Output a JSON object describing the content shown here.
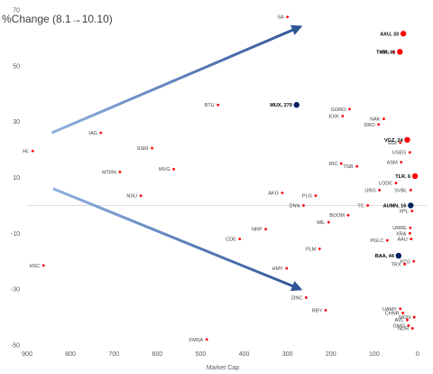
{
  "chart_data": {
    "type": "scatter",
    "title": "%Change (8.1→10.10)",
    "xlabel": "Market Cap",
    "ylabel": "",
    "x_reversed": true,
    "xlim": [
      900,
      0
    ],
    "ylim": [
      -50,
      70
    ],
    "x_ticks": [
      900,
      800,
      700,
      600,
      500,
      400,
      300,
      200,
      100,
      0
    ],
    "y_ticks": [
      70,
      50,
      30,
      10,
      -10,
      -30,
      -50
    ],
    "grid": false,
    "legend": "none",
    "colors": {
      "highlight_red": "#ff0000",
      "highlight_navy": "#002060",
      "marker": "#ff0000",
      "arrow": "#4472c4",
      "zero_line": "#d9d9d9"
    },
    "points": [
      {
        "label": "SA",
        "x": 300,
        "y": 67.5,
        "style": "small-red"
      },
      {
        "label": "AXU, 33",
        "x": 33,
        "y": 61.5,
        "style": "big-red"
      },
      {
        "label": "GPL",
        "x": 55,
        "y": 55,
        "style": "small-red"
      },
      {
        "label": "THM, 41",
        "x": 41,
        "y": 55,
        "style": "big-red"
      },
      {
        "label": "BTU",
        "x": 460,
        "y": 36,
        "style": "small-red"
      },
      {
        "label": "MUX, 279",
        "x": 279,
        "y": 36,
        "style": "big-navy"
      },
      {
        "label": "GORO",
        "x": 157,
        "y": 34.5,
        "style": "small-red"
      },
      {
        "label": "EXK",
        "x": 173,
        "y": 32,
        "style": "small-red"
      },
      {
        "label": "NAK",
        "x": 78,
        "y": 31,
        "style": "small-red"
      },
      {
        "label": "DRO",
        "x": 90,
        "y": 29,
        "style": "small-red"
      },
      {
        "label": "IAG",
        "x": 730,
        "y": 26,
        "style": "small-red"
      },
      {
        "label": "VGZ, 24",
        "x": 24,
        "y": 23.5,
        "style": "big-red"
      },
      {
        "label": "EGI",
        "x": 40,
        "y": 22.5,
        "style": "small-red"
      },
      {
        "label": "SSRI",
        "x": 612,
        "y": 20.5,
        "style": "small-red"
      },
      {
        "label": "HL",
        "x": 887,
        "y": 19.5,
        "style": "small-red"
      },
      {
        "label": "USEG",
        "x": 18,
        "y": 19,
        "style": "small-red"
      },
      {
        "label": "ASM",
        "x": 38,
        "y": 15.5,
        "style": "small-red"
      },
      {
        "label": "RIC",
        "x": 176,
        "y": 15,
        "style": "small-red"
      },
      {
        "label": "TGB",
        "x": 140,
        "y": 14,
        "style": "small-red"
      },
      {
        "label": "MTRN",
        "x": 686,
        "y": 12,
        "style": "small-red"
      },
      {
        "label": "MVG",
        "x": 562,
        "y": 13,
        "style": "small-red"
      },
      {
        "label": "TLR, 6",
        "x": 6,
        "y": 10.5,
        "style": "big-red"
      },
      {
        "label": "LODE",
        "x": 50,
        "y": 8,
        "style": "small-red"
      },
      {
        "label": "URG",
        "x": 88,
        "y": 5.5,
        "style": "small-red"
      },
      {
        "label": "SVBL",
        "x": 16,
        "y": 5.5,
        "style": "small-red"
      },
      {
        "label": "AKG",
        "x": 312,
        "y": 4.5,
        "style": "small-red"
      },
      {
        "label": "PLG",
        "x": 235,
        "y": 3.5,
        "style": "small-red"
      },
      {
        "label": "NSU",
        "x": 638,
        "y": 3.5,
        "style": "small-red"
      },
      {
        "label": "DNN",
        "x": 263,
        "y": 0,
        "style": "small-red"
      },
      {
        "label": "TC",
        "x": 115,
        "y": 0,
        "style": "small-red"
      },
      {
        "label": "AUMN, 16",
        "x": 16,
        "y": 0,
        "style": "big-navy"
      },
      {
        "label": "XPL",
        "x": 13,
        "y": -2,
        "style": "small-red"
      },
      {
        "label": "BOOM",
        "x": 160,
        "y": -3.5,
        "style": "small-red"
      },
      {
        "label": "MIL",
        "x": 205,
        "y": -6,
        "style": "small-red"
      },
      {
        "label": "URRE",
        "x": 17,
        "y": -8,
        "style": "small-red"
      },
      {
        "label": "NRP",
        "x": 350,
        "y": -8.5,
        "style": "small-red"
      },
      {
        "label": "XRA",
        "x": 18,
        "y": -10,
        "style": "small-red"
      },
      {
        "label": "CDE",
        "x": 410,
        "y": -12,
        "style": "small-red"
      },
      {
        "label": "PGLC",
        "x": 70,
        "y": -12.5,
        "style": "small-red"
      },
      {
        "label": "AAU",
        "x": 15,
        "y": -12,
        "style": "small-red"
      },
      {
        "label": "PLM",
        "x": 226,
        "y": -15.5,
        "style": "small-red"
      },
      {
        "label": "BAA, 44",
        "x": 44,
        "y": -18,
        "style": "big-navy"
      },
      {
        "label": "PZG",
        "x": 9,
        "y": -20,
        "style": "small-red"
      },
      {
        "label": "TRX",
        "x": 30,
        "y": -21,
        "style": "small-red"
      },
      {
        "label": "HSC",
        "x": 862,
        "y": -21.5,
        "style": "small-red"
      },
      {
        "label": "HMY",
        "x": 302,
        "y": -22.5,
        "style": "small-red"
      },
      {
        "label": "ZINC",
        "x": 257,
        "y": -33,
        "style": "small-red"
      },
      {
        "label": "UAMY",
        "x": 40,
        "y": -37,
        "style": "small-red"
      },
      {
        "label": "RBY",
        "x": 212,
        "y": -37.5,
        "style": "small-red"
      },
      {
        "label": "CHNR",
        "x": 34,
        "y": -38.5,
        "style": "small-red"
      },
      {
        "label": "MGN",
        "x": 8,
        "y": -40,
        "style": "small-red"
      },
      {
        "label": "AVL",
        "x": 24,
        "y": -41,
        "style": "small-red"
      },
      {
        "label": "GMO",
        "x": 21,
        "y": -43,
        "style": "small-red"
      },
      {
        "label": "NOR",
        "x": 12,
        "y": -44,
        "style": "small-red"
      },
      {
        "label": "FMSA",
        "x": 486,
        "y": -48,
        "style": "small-red"
      }
    ],
    "arrows": [
      {
        "from": [
          843,
          26
        ],
        "to": [
          270,
          64
        ]
      },
      {
        "from": [
          840,
          6
        ],
        "to": [
          270,
          -30
        ]
      }
    ]
  }
}
